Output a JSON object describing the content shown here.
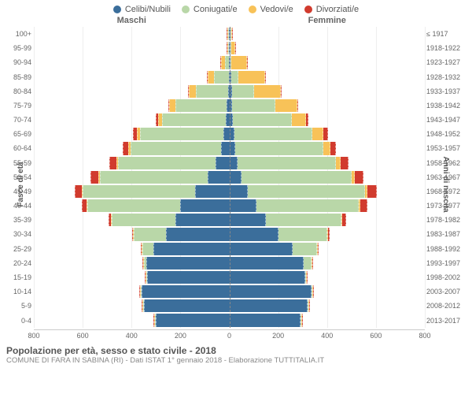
{
  "legend": [
    {
      "label": "Celibi/Nubili",
      "color": "#3b6e9b"
    },
    {
      "label": "Coniugati/e",
      "color": "#b9d7a8"
    },
    {
      "label": "Vedovi/e",
      "color": "#f8c258"
    },
    {
      "label": "Divorziati/e",
      "color": "#d13b2e"
    }
  ],
  "headers": {
    "male": "Maschi",
    "female": "Femmine"
  },
  "ylabels": {
    "left": "Fasce di età",
    "right": "Anni di nascita"
  },
  "title": "Popolazione per età, sesso e stato civile - 2018",
  "subtitle": "COMUNE DI FARA IN SABINA (RI) - Dati ISTAT 1° gennaio 2018 - Elaborazione TUTTITALIA.IT",
  "colors": {
    "single": "#3b6e9b",
    "married": "#b9d7a8",
    "widowed": "#f8c258",
    "divorced": "#d13b2e"
  },
  "xmax": 800,
  "xticks": [
    800,
    600,
    400,
    200,
    0,
    200,
    400,
    600,
    800
  ],
  "rows": [
    {
      "age": "100+",
      "birth": "≤ 1917",
      "m": {
        "s": 0,
        "c": 0,
        "v": 1,
        "d": 0
      },
      "f": {
        "s": 0,
        "c": 0,
        "v": 3,
        "d": 0
      }
    },
    {
      "age": "95-99",
      "birth": "1918-1922",
      "m": {
        "s": 0,
        "c": 1,
        "v": 3,
        "d": 0
      },
      "f": {
        "s": 0,
        "c": 0,
        "v": 18,
        "d": 0
      }
    },
    {
      "age": "90-94",
      "birth": "1923-1927",
      "m": {
        "s": 1,
        "c": 15,
        "v": 15,
        "d": 0
      },
      "f": {
        "s": 3,
        "c": 5,
        "v": 65,
        "d": 0
      }
    },
    {
      "age": "85-89",
      "birth": "1928-1932",
      "m": {
        "s": 3,
        "c": 60,
        "v": 25,
        "d": 0
      },
      "f": {
        "s": 8,
        "c": 30,
        "v": 110,
        "d": 2
      }
    },
    {
      "age": "80-84",
      "birth": "1933-1937",
      "m": {
        "s": 6,
        "c": 130,
        "v": 30,
        "d": 3
      },
      "f": {
        "s": 10,
        "c": 90,
        "v": 110,
        "d": 3
      }
    },
    {
      "age": "75-79",
      "birth": "1938-1942",
      "m": {
        "s": 10,
        "c": 210,
        "v": 25,
        "d": 6
      },
      "f": {
        "s": 12,
        "c": 175,
        "v": 90,
        "d": 6
      }
    },
    {
      "age": "70-74",
      "birth": "1943-1947",
      "m": {
        "s": 14,
        "c": 260,
        "v": 18,
        "d": 10
      },
      "f": {
        "s": 15,
        "c": 240,
        "v": 60,
        "d": 10
      }
    },
    {
      "age": "65-69",
      "birth": "1948-1952",
      "m": {
        "s": 25,
        "c": 340,
        "v": 12,
        "d": 18
      },
      "f": {
        "s": 20,
        "c": 320,
        "v": 45,
        "d": 18
      }
    },
    {
      "age": "60-64",
      "birth": "1953-1957",
      "m": {
        "s": 35,
        "c": 370,
        "v": 10,
        "d": 22
      },
      "f": {
        "s": 25,
        "c": 360,
        "v": 30,
        "d": 22
      }
    },
    {
      "age": "55-59",
      "birth": "1958-1962",
      "m": {
        "s": 55,
        "c": 400,
        "v": 8,
        "d": 28
      },
      "f": {
        "s": 35,
        "c": 400,
        "v": 22,
        "d": 30
      }
    },
    {
      "age": "50-54",
      "birth": "1963-1967",
      "m": {
        "s": 90,
        "c": 440,
        "v": 6,
        "d": 32
      },
      "f": {
        "s": 50,
        "c": 450,
        "v": 15,
        "d": 35
      }
    },
    {
      "age": "45-49",
      "birth": "1968-1972",
      "m": {
        "s": 140,
        "c": 460,
        "v": 4,
        "d": 30
      },
      "f": {
        "s": 75,
        "c": 480,
        "v": 10,
        "d": 38
      }
    },
    {
      "age": "40-44",
      "birth": "1973-1977",
      "m": {
        "s": 200,
        "c": 380,
        "v": 2,
        "d": 22
      },
      "f": {
        "s": 110,
        "c": 420,
        "v": 6,
        "d": 28
      }
    },
    {
      "age": "35-39",
      "birth": "1978-1982",
      "m": {
        "s": 220,
        "c": 260,
        "v": 1,
        "d": 12
      },
      "f": {
        "s": 150,
        "c": 310,
        "v": 3,
        "d": 15
      }
    },
    {
      "age": "30-34",
      "birth": "1983-1987",
      "m": {
        "s": 260,
        "c": 130,
        "v": 0,
        "d": 5
      },
      "f": {
        "s": 200,
        "c": 200,
        "v": 1,
        "d": 8
      }
    },
    {
      "age": "25-29",
      "birth": "1988-1992",
      "m": {
        "s": 310,
        "c": 45,
        "v": 0,
        "d": 1
      },
      "f": {
        "s": 260,
        "c": 100,
        "v": 0,
        "d": 3
      }
    },
    {
      "age": "20-24",
      "birth": "1993-1997",
      "m": {
        "s": 340,
        "c": 8,
        "v": 0,
        "d": 0
      },
      "f": {
        "s": 305,
        "c": 30,
        "v": 0,
        "d": 0
      }
    },
    {
      "age": "15-19",
      "birth": "1998-2002",
      "m": {
        "s": 335,
        "c": 0,
        "v": 0,
        "d": 0
      },
      "f": {
        "s": 310,
        "c": 2,
        "v": 0,
        "d": 0
      }
    },
    {
      "age": "10-14",
      "birth": "2003-2007",
      "m": {
        "s": 360,
        "c": 0,
        "v": 0,
        "d": 0
      },
      "f": {
        "s": 335,
        "c": 0,
        "v": 0,
        "d": 0
      }
    },
    {
      "age": "5-9",
      "birth": "2008-2012",
      "m": {
        "s": 350,
        "c": 0,
        "v": 0,
        "d": 0
      },
      "f": {
        "s": 320,
        "c": 0,
        "v": 0,
        "d": 0
      }
    },
    {
      "age": "0-4",
      "birth": "2013-2017",
      "m": {
        "s": 300,
        "c": 0,
        "v": 0,
        "d": 0
      },
      "f": {
        "s": 290,
        "c": 0,
        "v": 0,
        "d": 0
      }
    }
  ]
}
